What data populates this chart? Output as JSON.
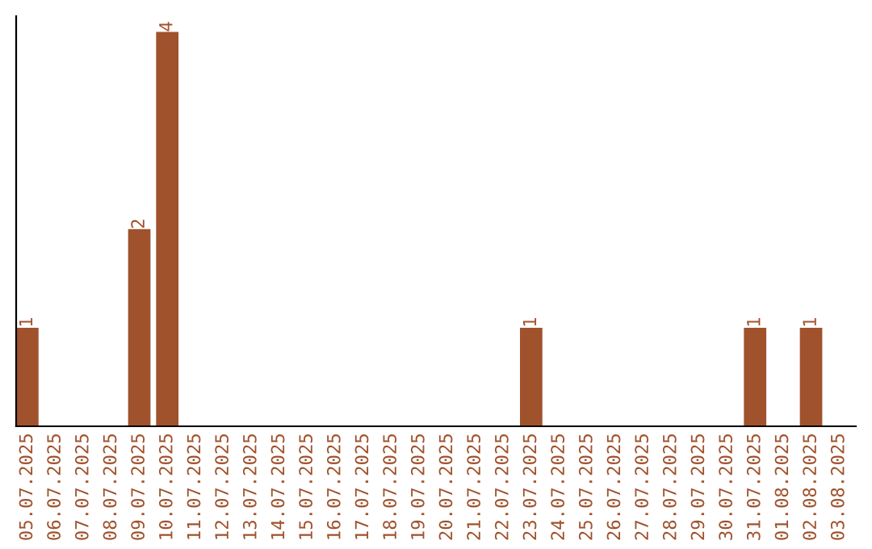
{
  "chart_data": {
    "type": "bar",
    "categories": [
      "05.07.2025",
      "06.07.2025",
      "07.07.2025",
      "08.07.2025",
      "09.07.2025",
      "10.07.2025",
      "11.07.2025",
      "12.07.2025",
      "13.07.2025",
      "14.07.2025",
      "15.07.2025",
      "16.07.2025",
      "17.07.2025",
      "18.07.2025",
      "19.07.2025",
      "20.07.2025",
      "21.07.2025",
      "22.07.2025",
      "23.07.2025",
      "24.07.2025",
      "25.07.2025",
      "26.07.2025",
      "27.07.2025",
      "28.07.2025",
      "29.07.2025",
      "30.07.2025",
      "31.07.2025",
      "01.08.2025",
      "02.08.2025",
      "03.08.2025"
    ],
    "values": [
      1,
      0,
      0,
      0,
      2,
      4,
      0,
      0,
      0,
      0,
      0,
      0,
      0,
      0,
      0,
      0,
      0,
      0,
      1,
      0,
      0,
      0,
      0,
      0,
      0,
      0,
      1,
      0,
      1,
      0
    ],
    "value_labels": [
      "1",
      null,
      null,
      null,
      "2",
      "4",
      null,
      null,
      null,
      null,
      null,
      null,
      null,
      null,
      null,
      null,
      null,
      null,
      "1",
      null,
      null,
      null,
      null,
      null,
      null,
      null,
      "1",
      null,
      "1",
      null
    ],
    "color": "#a0522d",
    "grid": false,
    "legend": false
  }
}
